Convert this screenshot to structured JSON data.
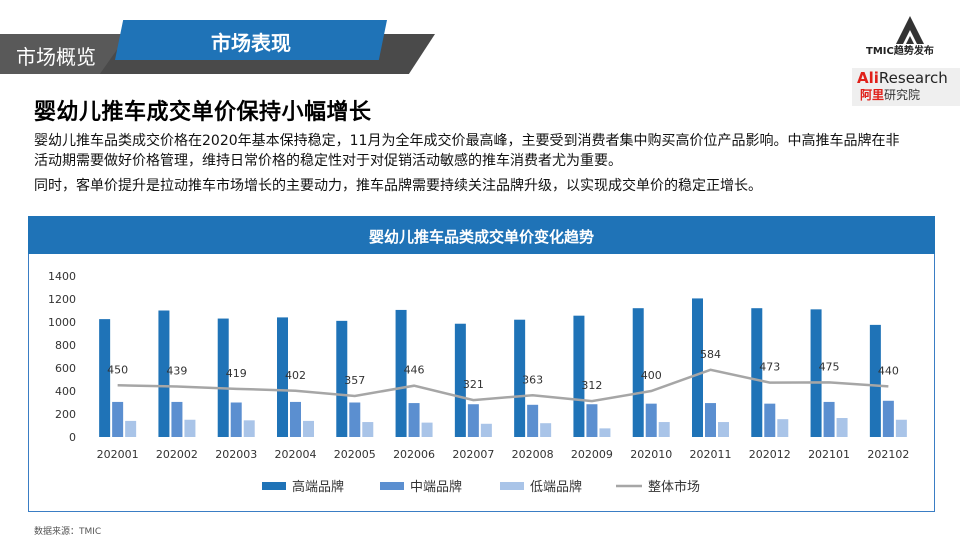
{
  "header": {
    "section_label": "市场概览",
    "active_tab": "市场表现",
    "logo_tmic_text": "TMIC趋势发布",
    "logo_ali_brand": "Ali",
    "logo_ali_research": "Research",
    "logo_ali_cn_brand": "阿里",
    "logo_ali_cn_institute": "研究院"
  },
  "page": {
    "title": "婴幼儿推车成交单价保持小幅增长",
    "paragraph1": "婴幼儿推车品类成交价格在2020年基本保持稳定，11月为全年成交价最高峰，主要受到消费者集中购买高价位产品影响。中高推车品牌在非活动期需要做好价格管理，维持日常价格的稳定性对于对促销活动敏感的推车消费者尤为重要。",
    "paragraph2": "同时，客单价提升是拉动推车市场增长的主要动力，推车品牌需要持续关注品牌升级，以实现成交单价的稳定正增长。",
    "source": "数据来源：TMIC"
  },
  "colors": {
    "high": "#1f73b7",
    "mid": "#5b8fd0",
    "low": "#a9c4e8",
    "overall": "#a6a6a6",
    "accent": "#1f73b7"
  },
  "chart_data": {
    "type": "bar",
    "title": "婴幼儿推车品类成交单价变化趋势",
    "categories": [
      "202001",
      "202002",
      "202003",
      "202004",
      "202005",
      "202006",
      "202007",
      "202008",
      "202009",
      "202010",
      "202011",
      "202012",
      "202101",
      "202102"
    ],
    "ylim": [
      0,
      1400
    ],
    "yticks": [
      0,
      200,
      400,
      600,
      800,
      1000,
      1200,
      1400
    ],
    "grid": false,
    "legend_position": "bottom",
    "series": [
      {
        "name": "高端品牌",
        "type": "bar",
        "values": [
          1025,
          1100,
          1030,
          1040,
          1010,
          1105,
          985,
          1020,
          1055,
          1120,
          1205,
          1120,
          1110,
          975
        ]
      },
      {
        "name": "中端品牌",
        "type": "bar",
        "values": [
          305,
          305,
          300,
          305,
          300,
          295,
          285,
          280,
          285,
          290,
          295,
          290,
          305,
          315
        ]
      },
      {
        "name": "低端品牌",
        "type": "bar",
        "values": [
          140,
          150,
          145,
          140,
          130,
          125,
          115,
          120,
          75,
          130,
          130,
          155,
          165,
          150
        ]
      },
      {
        "name": "整体市场",
        "type": "line",
        "values": [
          450,
          439,
          419,
          402,
          357,
          446,
          321,
          363,
          312,
          400,
          584,
          473,
          475,
          440
        ],
        "labels": [
          "450",
          "439",
          "419",
          "402",
          "357",
          "446",
          "321",
          "363",
          "312",
          "400",
          "584",
          "473",
          "475",
          "440"
        ]
      }
    ]
  }
}
